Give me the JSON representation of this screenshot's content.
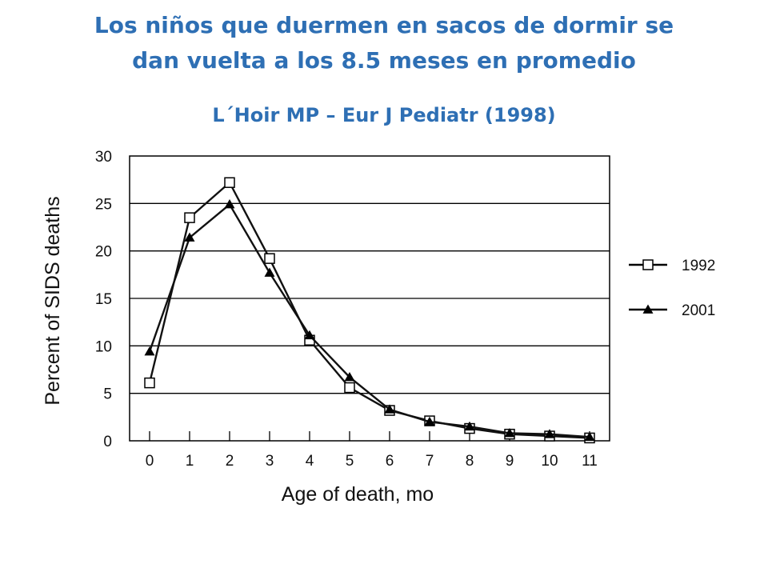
{
  "slide": {
    "title_line1": "Los niños que duermen en sacos de dormir se",
    "title_line2": "dan vuelta a los 8.5 meses en promedio",
    "citation": "L´Hoir MP – Eur J Pediatr (1998)",
    "title_color": "#2e6fb4"
  },
  "chart_data": {
    "type": "line",
    "xlabel": "Age of death, mo",
    "ylabel": "Percent of SIDS deaths",
    "x": [
      0,
      1,
      2,
      3,
      4,
      5,
      6,
      7,
      8,
      9,
      10,
      11
    ],
    "x_tick_labels": [
      "0",
      "1",
      "2",
      "3",
      "4",
      "5",
      "6",
      "7",
      "8",
      "9",
      "10",
      "11"
    ],
    "ylim": [
      0,
      30
    ],
    "y_ticks": [
      0,
      5,
      10,
      15,
      20,
      25,
      30
    ],
    "y_tick_labels": [
      "0",
      "5",
      "10",
      "15",
      "20",
      "25",
      "30"
    ],
    "grid": "horizontal",
    "legend_position": "right",
    "series": [
      {
        "name": "1992",
        "marker": "open-square",
        "color": "#111111",
        "values": [
          6.1,
          23.5,
          27.2,
          19.2,
          10.6,
          5.6,
          3.2,
          2.1,
          1.3,
          0.7,
          0.5,
          0.3
        ]
      },
      {
        "name": "2001",
        "marker": "filled-triangle",
        "color": "#111111",
        "values": [
          9.4,
          21.4,
          24.9,
          17.7,
          11.1,
          6.7,
          3.3,
          2.0,
          1.5,
          0.8,
          0.7,
          0.4
        ]
      }
    ]
  }
}
